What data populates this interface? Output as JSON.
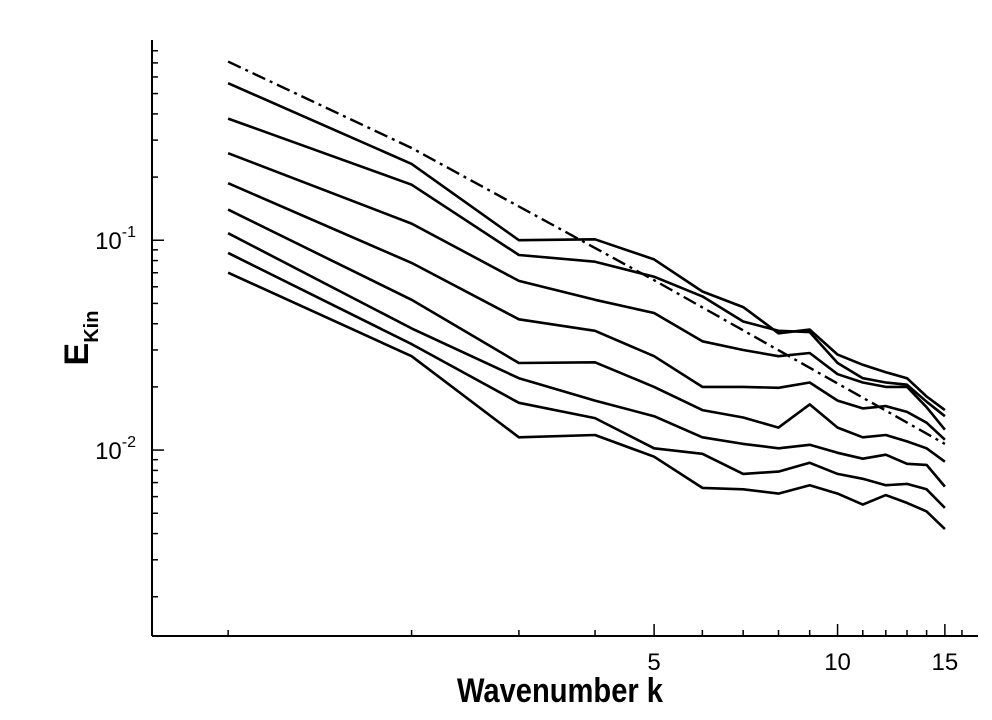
{
  "chart_data": {
    "type": "line",
    "xlabel": "Wavenumber k",
    "ylabel_main": "E",
    "ylabel_sub": "Kin",
    "xscale": "log",
    "yscale": "log",
    "xlim": [
      0.75,
      17
    ],
    "ylim": [
      0.0013,
      0.9
    ],
    "grid": false,
    "x_tick_labels": [
      {
        "value": 5,
        "label": "5"
      },
      {
        "value": 10,
        "label": "10"
      },
      {
        "value": 15,
        "label": "15"
      }
    ],
    "x_minor_ticks": [
      1,
      2,
      3,
      4,
      6,
      7,
      8,
      9,
      11,
      12,
      13,
      14,
      16
    ],
    "y_tick_labels": [
      {
        "value": 0.1,
        "base": "10",
        "exp": "-1"
      },
      {
        "value": 0.01,
        "base": "10",
        "exp": "-2"
      }
    ],
    "y_minor_ticks": [
      0.002,
      0.003,
      0.004,
      0.005,
      0.006,
      0.007,
      0.008,
      0.009,
      0.02,
      0.03,
      0.04,
      0.05,
      0.06,
      0.07,
      0.08,
      0.09,
      0.2,
      0.3,
      0.4,
      0.5,
      0.6,
      0.7,
      0.8
    ],
    "reference_line": {
      "style": "dash-dot",
      "x": [
        1,
        2,
        5,
        15
      ],
      "y": [
        0.71,
        0.275,
        0.0645,
        0.0107
      ]
    },
    "series": [
      {
        "x": [
          1,
          2,
          3,
          4,
          5,
          6,
          7,
          8,
          9,
          10,
          11,
          12,
          13,
          14,
          15
        ],
        "y": [
          0.56,
          0.231,
          0.1,
          0.101,
          0.081,
          0.057,
          0.048,
          0.036,
          0.0375,
          0.0285,
          0.0255,
          0.0235,
          0.022,
          0.018,
          0.0155
        ]
      },
      {
        "x": [
          1,
          2,
          3,
          4,
          5,
          6,
          7,
          8,
          9,
          10,
          11,
          12,
          13,
          14,
          15
        ],
        "y": [
          0.38,
          0.184,
          0.085,
          0.079,
          0.067,
          0.054,
          0.041,
          0.037,
          0.0365,
          0.026,
          0.022,
          0.021,
          0.0205,
          0.017,
          0.0145
        ]
      },
      {
        "x": [
          1,
          2,
          3,
          4,
          5,
          6,
          7,
          8,
          9,
          10,
          11,
          12,
          13,
          14,
          15
        ],
        "y": [
          0.26,
          0.12,
          0.064,
          0.052,
          0.045,
          0.033,
          0.03,
          0.028,
          0.029,
          0.023,
          0.021,
          0.02,
          0.02,
          0.016,
          0.0125
        ]
      },
      {
        "x": [
          1,
          2,
          3,
          4,
          5,
          6,
          7,
          8,
          9,
          10,
          11,
          12,
          13,
          14,
          15
        ],
        "y": [
          0.187,
          0.078,
          0.042,
          0.037,
          0.028,
          0.02,
          0.02,
          0.0198,
          0.021,
          0.0172,
          0.0158,
          0.0162,
          0.0152,
          0.0135,
          0.0112
        ]
      },
      {
        "x": [
          1,
          2,
          3,
          4,
          5,
          6,
          7,
          8,
          9,
          10,
          11,
          12,
          13,
          14,
          15
        ],
        "y": [
          0.14,
          0.052,
          0.026,
          0.0262,
          0.02,
          0.0155,
          0.0143,
          0.0128,
          0.0165,
          0.0128,
          0.0115,
          0.0118,
          0.011,
          0.0102,
          0.0088
        ]
      },
      {
        "x": [
          1,
          2,
          3,
          4,
          5,
          6,
          7,
          8,
          9,
          10,
          11,
          12,
          13,
          14,
          15
        ],
        "y": [
          0.108,
          0.038,
          0.022,
          0.0172,
          0.0145,
          0.0115,
          0.0107,
          0.0102,
          0.0106,
          0.0097,
          0.0091,
          0.0095,
          0.0086,
          0.0085,
          0.0067
        ]
      },
      {
        "x": [
          1,
          2,
          3,
          4,
          5,
          6,
          7,
          8,
          9,
          10,
          11,
          12,
          13,
          14,
          15
        ],
        "y": [
          0.087,
          0.032,
          0.0168,
          0.0142,
          0.0102,
          0.0096,
          0.0077,
          0.0079,
          0.0087,
          0.0077,
          0.0073,
          0.0068,
          0.0069,
          0.0065,
          0.0053
        ]
      },
      {
        "x": [
          1,
          2,
          3,
          4,
          5,
          6,
          7,
          8,
          9,
          10,
          11,
          12,
          13,
          14,
          15
        ],
        "y": [
          0.07,
          0.028,
          0.0115,
          0.0118,
          0.0093,
          0.0066,
          0.0065,
          0.0062,
          0.0068,
          0.0062,
          0.0055,
          0.0061,
          0.0056,
          0.0051,
          0.0042
        ]
      }
    ]
  }
}
